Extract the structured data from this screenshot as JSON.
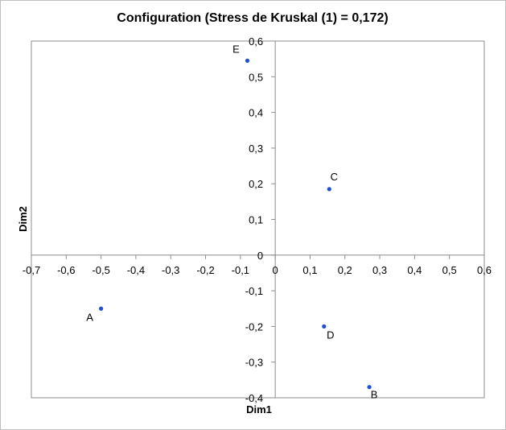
{
  "chart_data": {
    "type": "scatter",
    "title": "Configuration (Stress de Kruskal (1) = 0,172)",
    "xlabel": "Dim1",
    "ylabel": "Dim2",
    "xlim": [
      -0.7,
      0.6
    ],
    "ylim": [
      -0.4,
      0.6
    ],
    "x_ticks": [
      "-0,7",
      "-0,6",
      "-0,5",
      "-0,4",
      "-0,3",
      "-0,2",
      "-0,1",
      "0",
      "0,1",
      "0,2",
      "0,3",
      "0,4",
      "0,5",
      "0,6"
    ],
    "y_ticks": [
      "-0,4",
      "-0,3",
      "-0,2",
      "-0,1",
      "0",
      "0,1",
      "0,2",
      "0,3",
      "0,4",
      "0,5",
      "0,6"
    ],
    "grid": false,
    "marker_color": "#1f4fd6",
    "points": [
      {
        "label": "A",
        "x": -0.5,
        "y": -0.15
      },
      {
        "label": "B",
        "x": 0.27,
        "y": -0.37
      },
      {
        "label": "C",
        "x": 0.155,
        "y": 0.185
      },
      {
        "label": "D",
        "x": 0.14,
        "y": -0.2
      },
      {
        "label": "E",
        "x": -0.08,
        "y": 0.545
      }
    ]
  }
}
